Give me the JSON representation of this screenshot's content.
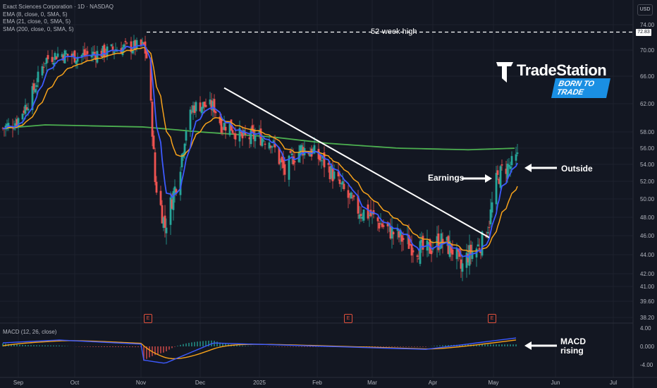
{
  "legend": {
    "title": "Exact Sciences Corporation · 1D · NASDAQ",
    "ema8": "EMA (8, close, 0, SMA, 5)",
    "ema21": "EMA (21, close, 0, SMA, 5)",
    "sma200": "SMA (200, close, 0, SMA, 5)",
    "macd": "MACD (12, 26, close)"
  },
  "currency": "USD",
  "logo": {
    "name": "TradeStation",
    "tagline": "BORN TO TRADE"
  },
  "annotations": {
    "high_label": "52-week high",
    "earnings": "Earnings",
    "outside": "Outside",
    "macd_1": "MACD",
    "macd_2": "rising"
  },
  "earnings_marker": "E",
  "colors": {
    "background": "#131722",
    "up": "#26a69a",
    "down": "#ef5350",
    "ema8": "#3d5afe",
    "ema21": "#f7a21b",
    "sma200": "#4caf50",
    "macd_line": "#3d5afe",
    "signal_line": "#f7a21b"
  },
  "chart_data": {
    "type": "candlestick",
    "y_ticks": [
      "74.00",
      "70.00",
      "66.00",
      "62.00",
      "58.00",
      "56.00",
      "54.00",
      "52.00",
      "50.00",
      "48.00",
      "46.00",
      "44.00",
      "42.00",
      "41.00",
      "39.60",
      "38.20"
    ],
    "x_ticks": [
      "Sep",
      "Oct",
      "Nov",
      "Dec",
      "2025",
      "Feb",
      "Mar",
      "Apr",
      "May",
      "Jun",
      "Jul"
    ],
    "high_52w": 72.83,
    "high_52w_label": "72.83",
    "macd_ticks": [
      "4.00",
      "0.000",
      "-4.00"
    ],
    "close_path": [
      [
        0,
        58.5
      ],
      [
        10,
        59.5
      ],
      [
        20,
        63
      ],
      [
        30,
        68.5
      ],
      [
        40,
        69.5
      ],
      [
        50,
        69
      ],
      [
        60,
        69.3
      ],
      [
        70,
        69.6
      ],
      [
        80,
        70.2
      ],
      [
        90,
        70.5
      ],
      [
        100,
        70.6
      ],
      [
        103,
        68
      ],
      [
        108,
        52
      ],
      [
        115,
        47
      ],
      [
        120,
        50
      ],
      [
        125,
        53
      ],
      [
        130,
        58.5
      ],
      [
        135,
        61.5
      ],
      [
        140,
        61.8
      ],
      [
        150,
        61.5
      ],
      [
        155,
        59
      ],
      [
        160,
        59
      ],
      [
        170,
        57.2
      ],
      [
        180,
        57.5
      ],
      [
        190,
        57
      ],
      [
        200,
        53
      ],
      [
        205,
        54.7
      ],
      [
        212,
        56
      ],
      [
        220,
        55.5
      ],
      [
        230,
        53.8
      ],
      [
        240,
        51.3
      ],
      [
        250,
        49
      ],
      [
        260,
        48.3
      ],
      [
        270,
        47
      ],
      [
        280,
        46
      ],
      [
        290,
        45
      ],
      [
        300,
        44.3
      ],
      [
        310,
        45.5
      ],
      [
        320,
        44.4
      ],
      [
        325,
        42.5
      ],
      [
        330,
        44
      ],
      [
        335,
        44.5
      ],
      [
        340,
        45.4
      ],
      [
        345,
        47.5
      ],
      [
        350,
        52
      ],
      [
        355,
        53.6
      ],
      [
        360,
        53.8
      ],
      [
        365,
        54.8
      ]
    ],
    "sma200_path": [
      [
        0,
        58.5
      ],
      [
        30,
        59
      ],
      [
        100,
        58.7
      ],
      [
        140,
        58
      ],
      [
        190,
        57.4
      ],
      [
        230,
        56.6
      ],
      [
        280,
        56
      ],
      [
        330,
        55.8
      ],
      [
        365,
        56
      ]
    ],
    "earnings_days": [
      103,
      245,
      347
    ],
    "trendline": [
      [
        157,
        64.3
      ],
      [
        345,
        45.8
      ]
    ]
  }
}
